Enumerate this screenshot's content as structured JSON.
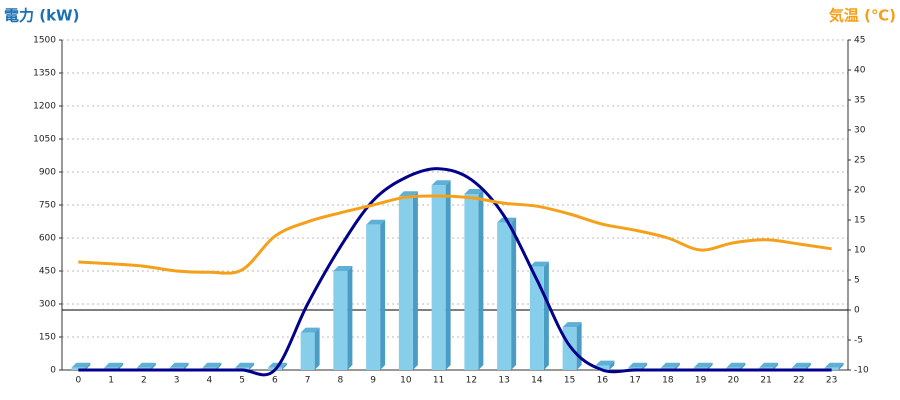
{
  "chart_data": {
    "type": "bar",
    "y_title": "電力 (kW)",
    "y2_title": "気温 (℃)",
    "categories": [
      "0",
      "1",
      "2",
      "3",
      "4",
      "5",
      "6",
      "7",
      "8",
      "9",
      "10",
      "11",
      "12",
      "13",
      "14",
      "15",
      "16",
      "17",
      "18",
      "19",
      "20",
      "21",
      "22",
      "23"
    ],
    "ylim": [
      0,
      1500
    ],
    "yticks": [
      0,
      150,
      300,
      450,
      600,
      750,
      900,
      1050,
      1200,
      1350,
      1500
    ],
    "y2lim": [
      -10,
      45
    ],
    "y2ticks": [
      -10,
      -5,
      0,
      5,
      10,
      15,
      20,
      25,
      30,
      35,
      40,
      45
    ],
    "grid": true,
    "series": [
      {
        "type": "bar",
        "color": "#87ceeb",
        "values": [
          10,
          10,
          10,
          10,
          10,
          10,
          10,
          170,
          450,
          660,
          790,
          840,
          800,
          670,
          470,
          195,
          20,
          10,
          10,
          10,
          10,
          10,
          10,
          10
        ]
      },
      {
        "type": "line",
        "color": "#00008b",
        "values": [
          0,
          0,
          0,
          0,
          0,
          0,
          0,
          300,
          560,
          770,
          875,
          915,
          865,
          700,
          410,
          110,
          0,
          0,
          0,
          0,
          0,
          0,
          0,
          0
        ]
      },
      {
        "type": "line",
        "axis": "y2",
        "color": "#f5a01a",
        "values": [
          8,
          7.7,
          7.3,
          6.5,
          6.3,
          6.7,
          12.3,
          14.7,
          16.2,
          17.5,
          18.8,
          19,
          18.7,
          17.8,
          17.3,
          16,
          14.3,
          13.3,
          12,
          10,
          11.2,
          11.7,
          11,
          10.2
        ]
      }
    ]
  }
}
